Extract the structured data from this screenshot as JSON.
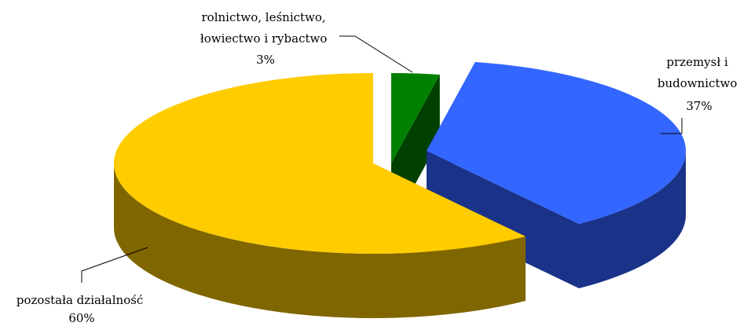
{
  "chart_data": {
    "type": "pie",
    "style": "3d-exploded",
    "slices": [
      {
        "label_lines": [
          "rolnictwo, leśnictwo,",
          "łowiectwo i rybactwo"
        ],
        "pct_label": "3%",
        "value": 3,
        "color": "#008000",
        "side_color": "#004000"
      },
      {
        "label_lines": [
          "przemysł i",
          "budownictwo"
        ],
        "pct_label": "37%",
        "value": 37,
        "color": "#3366FF",
        "side_color": "#1A3388"
      },
      {
        "label_lines": [
          "pozostała działalność"
        ],
        "pct_label": "60%",
        "value": 60,
        "color": "#FFCC00",
        "side_color": "#806600"
      }
    ]
  }
}
